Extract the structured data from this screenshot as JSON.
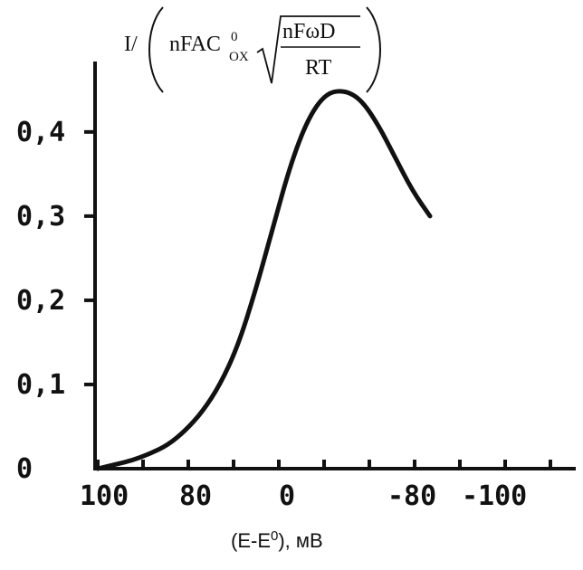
{
  "chart_data": {
    "type": "line",
    "title": "",
    "ylabel_parts": {
      "prefix": "I/",
      "main": "nFAC",
      "superscript": "0",
      "subscript": "OX",
      "fraction_numerator": "nFωD",
      "fraction_denominator": "RT"
    },
    "xlabel_parts": {
      "prefix": "(E-E",
      "superscript": "0",
      "suffix": "), мВ"
    },
    "x_tick_labels": [
      "100",
      "80",
      "0",
      "-80",
      "-100"
    ],
    "y_tick_labels": [
      "0",
      "0,1",
      "0,2",
      "0,3",
      "0,4"
    ],
    "y_tick_values": [
      0,
      0.1,
      0.2,
      0.3,
      0.4
    ],
    "ylim": [
      0,
      0.46
    ],
    "grid": false,
    "series": [
      {
        "values_description_free": true,
        "points": [
          [
            0,
            0.0
          ],
          [
            0.05,
            0.005
          ],
          [
            0.1,
            0.01
          ],
          [
            0.15,
            0.018
          ],
          [
            0.2,
            0.028
          ],
          [
            0.25,
            0.045
          ],
          [
            0.3,
            0.068
          ],
          [
            0.35,
            0.1
          ],
          [
            0.4,
            0.145
          ],
          [
            0.45,
            0.21
          ],
          [
            0.5,
            0.285
          ],
          [
            0.55,
            0.36
          ],
          [
            0.6,
            0.415
          ],
          [
            0.65,
            0.445
          ],
          [
            0.7,
            0.45
          ],
          [
            0.75,
            0.44
          ],
          [
            0.8,
            0.41
          ],
          [
            0.85,
            0.37
          ],
          [
            0.9,
            0.33
          ],
          [
            0.95,
            0.3
          ]
        ]
      }
    ],
    "x_positions_of_ticks_fraction": [
      0.0,
      0.25,
      0.5,
      0.75,
      1.0
    ],
    "line_color": "#111111",
    "axis_color": "#111111"
  }
}
